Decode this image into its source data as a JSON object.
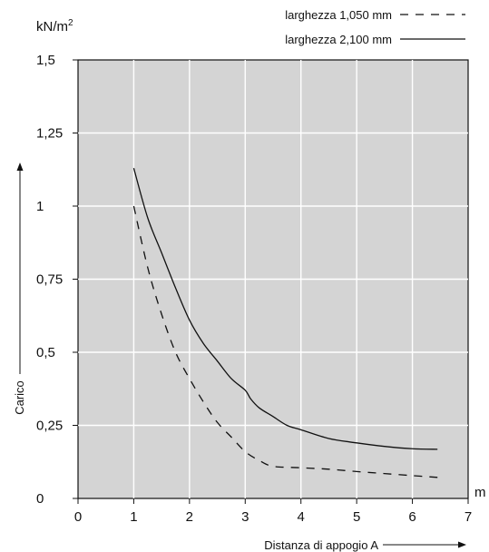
{
  "chart_data": {
    "type": "line",
    "y_unit": "kN/m",
    "y_unit_superscript": "2",
    "x_unit": "m",
    "xlabel": "Distanza di appogio A",
    "ylabel": "Carico",
    "xlim": [
      0,
      7
    ],
    "ylim": [
      0,
      1.5
    ],
    "x_ticks": [
      "0",
      "1",
      "2",
      "3",
      "4",
      "5",
      "6",
      "7"
    ],
    "y_ticks": [
      "0",
      "0,25",
      "0,5",
      "0,75",
      "1",
      "1,25",
      "1,5"
    ],
    "grid": true,
    "legend_position": "top-right",
    "colors": {
      "plot_background": "#d4d4d4",
      "grid": "#ffffff",
      "line": "#111111"
    },
    "series": [
      {
        "name": "larghezza 1,050 mm",
        "style": "dashed",
        "x": [
          1.0,
          1.25,
          1.5,
          1.75,
          2.0,
          2.25,
          2.5,
          2.75,
          3.0,
          3.25,
          3.5,
          4.0,
          4.5,
          5.0,
          5.5,
          6.0,
          6.45
        ],
        "y": [
          1.0,
          0.79,
          0.63,
          0.5,
          0.41,
          0.33,
          0.26,
          0.21,
          0.16,
          0.13,
          0.11,
          0.105,
          0.1,
          0.092,
          0.085,
          0.078,
          0.072
        ]
      },
      {
        "name": "larghezza 2,100 mm",
        "style": "solid",
        "x": [
          1.0,
          1.25,
          1.5,
          1.75,
          2.0,
          2.25,
          2.5,
          2.75,
          3.0,
          3.1,
          3.25,
          3.5,
          3.75,
          4.0,
          4.5,
          5.0,
          5.5,
          6.0,
          6.45
        ],
        "y": [
          1.13,
          0.96,
          0.84,
          0.72,
          0.61,
          0.53,
          0.47,
          0.41,
          0.37,
          0.34,
          0.31,
          0.28,
          0.25,
          0.235,
          0.205,
          0.19,
          0.178,
          0.17,
          0.168
        ]
      }
    ]
  }
}
